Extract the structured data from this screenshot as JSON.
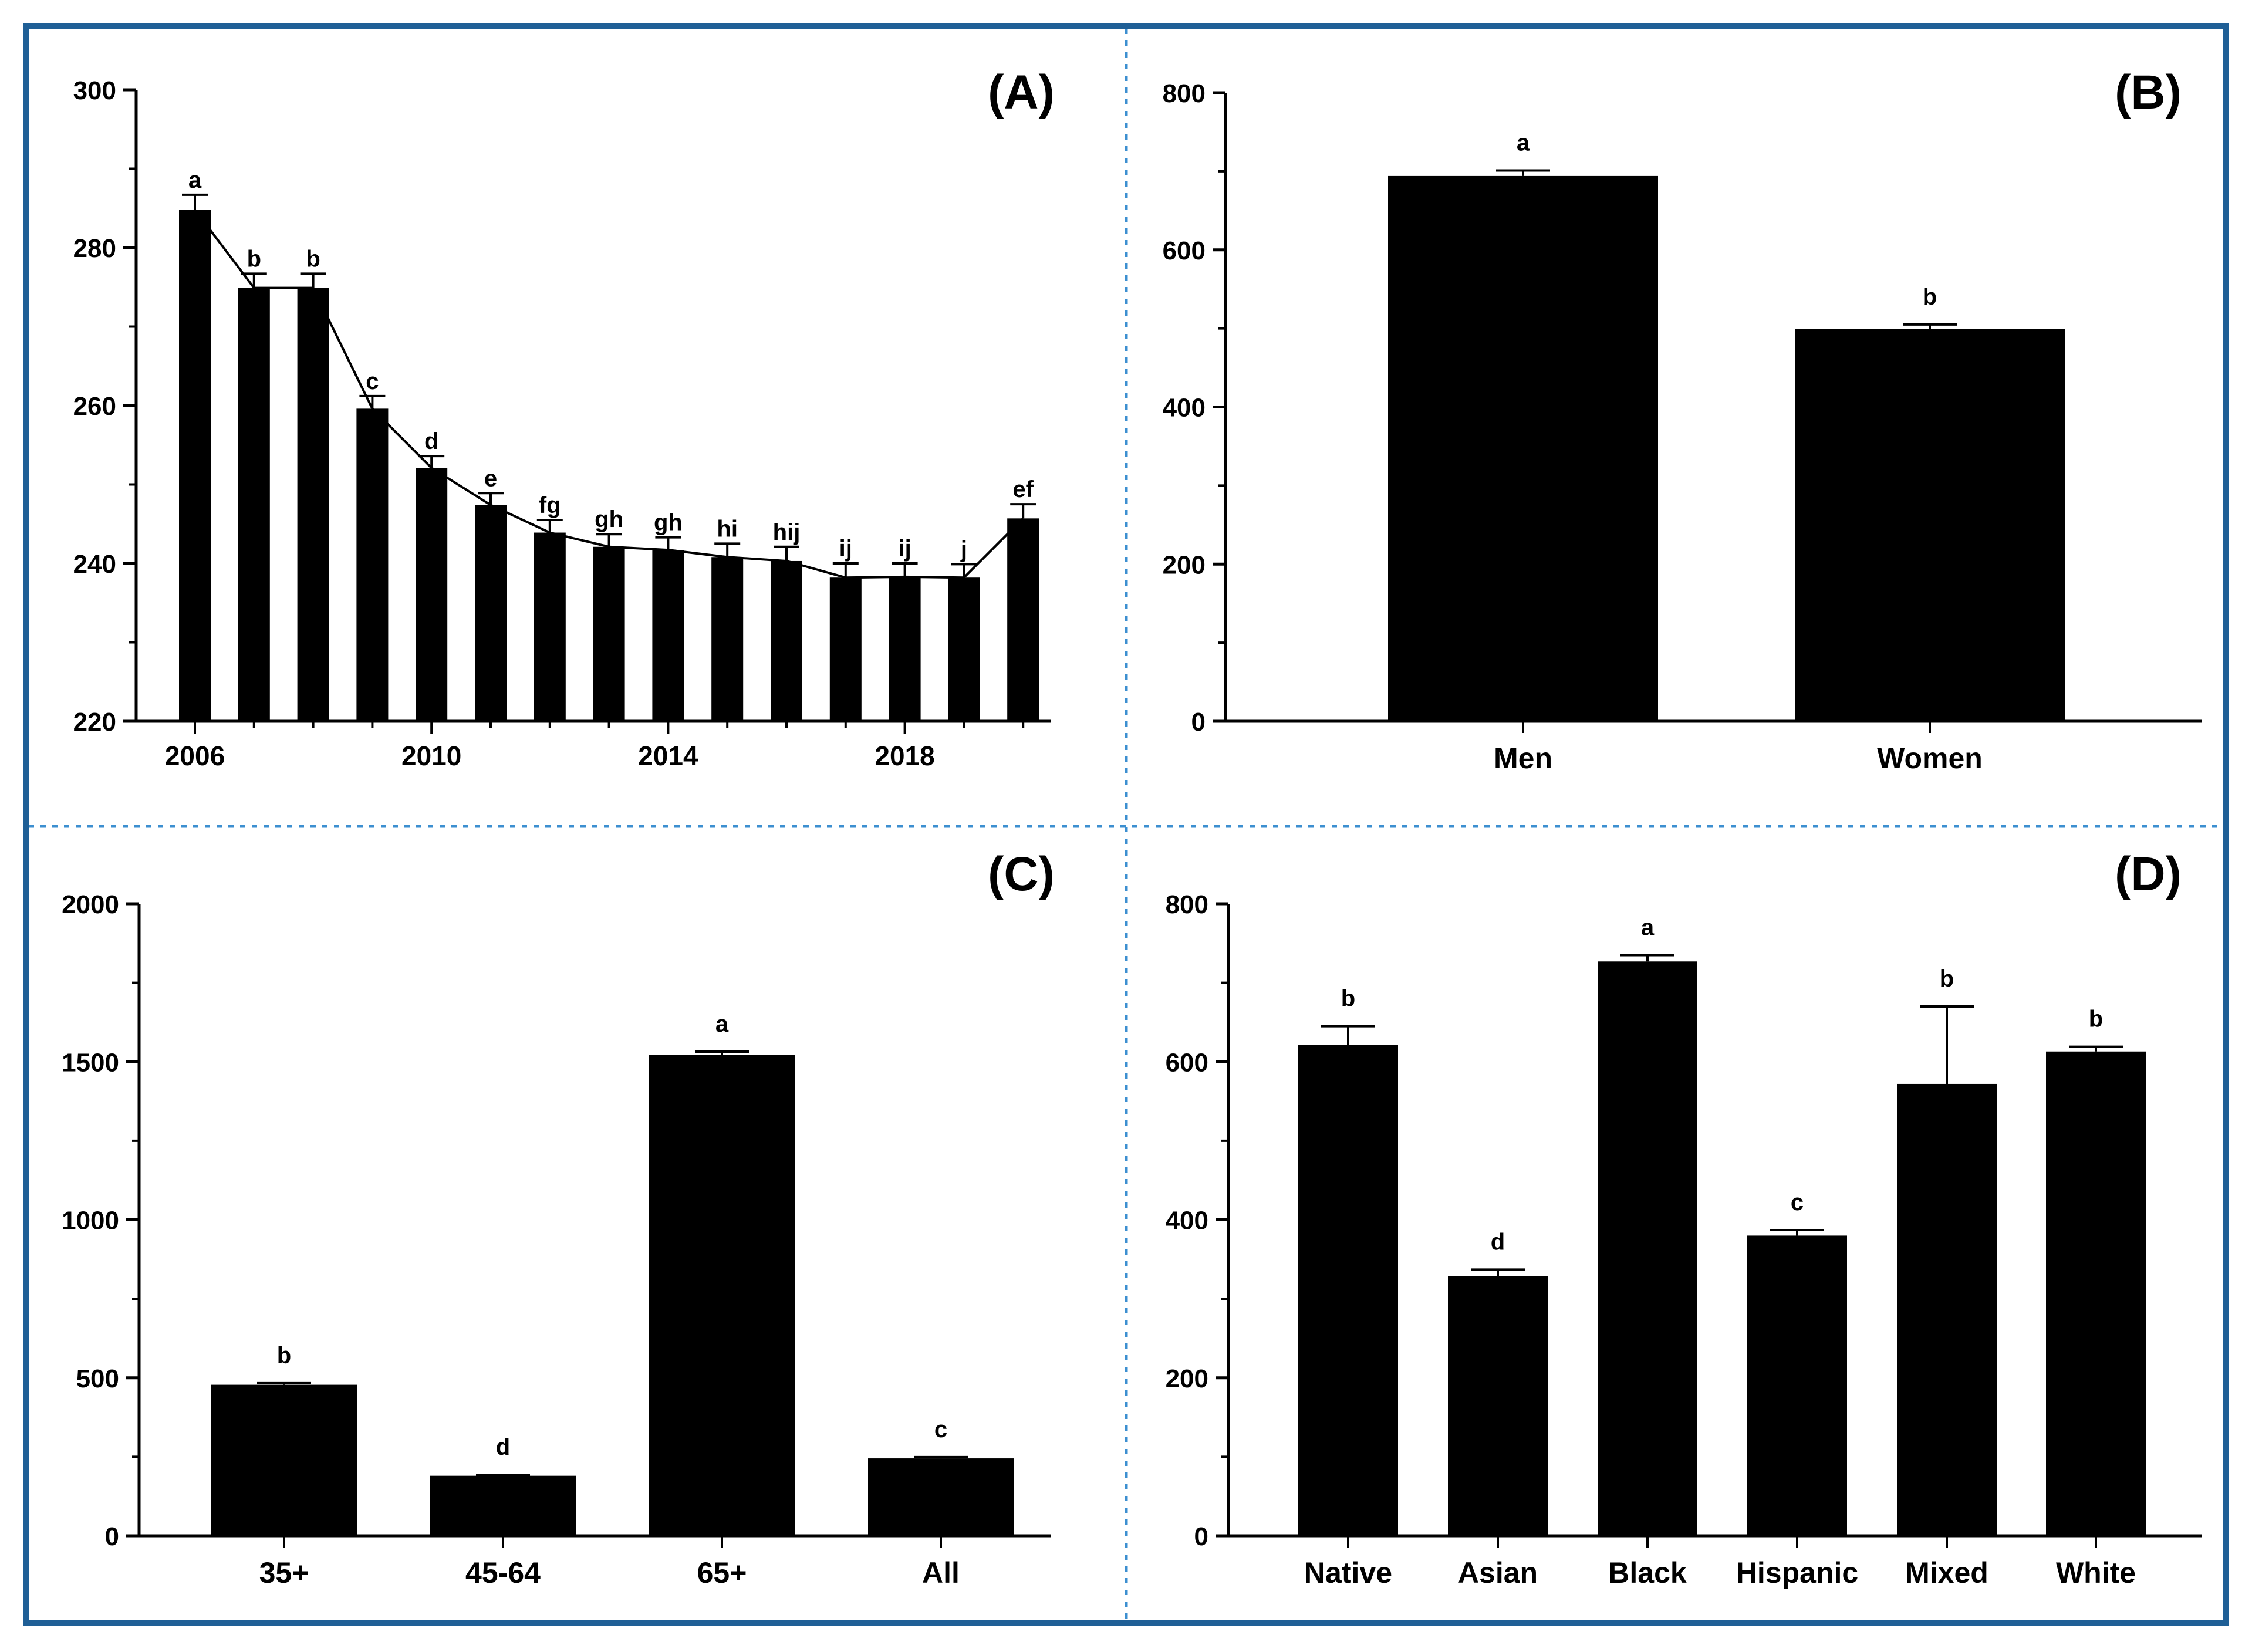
{
  "colors": {
    "frame": "#1f5f96",
    "divider": "#3c8fd0",
    "bar": "#000000",
    "text": "#000000"
  },
  "chart_data": [
    {
      "panel": "(A)",
      "type": "bar",
      "x": [
        2006,
        2007,
        2008,
        2009,
        2010,
        2011,
        2012,
        2013,
        2014,
        2015,
        2016,
        2017,
        2018,
        2019,
        2020
      ],
      "values": [
        284.8,
        274.9,
        274.9,
        259.6,
        252.1,
        247.4,
        243.9,
        242.1,
        241.7,
        240.8,
        240.3,
        238.2,
        238.3,
        238.2,
        245.7
      ],
      "errors": [
        1.9,
        1.8,
        1.8,
        1.6,
        1.5,
        1.5,
        1.6,
        1.6,
        1.6,
        1.7,
        1.8,
        1.8,
        1.7,
        1.7,
        1.8
      ],
      "letters": [
        "a",
        "b",
        "b",
        "c",
        "d",
        "e",
        "fg",
        "gh",
        "gh",
        "hi",
        "hij",
        "ij",
        "ij",
        "j",
        "ef"
      ],
      "trend_line": true,
      "xticks": [
        "2006",
        "2010",
        "2014",
        "2018"
      ],
      "yticks": [
        "220",
        "240",
        "260",
        "280",
        "300"
      ],
      "ylim": [
        220,
        300
      ]
    },
    {
      "panel": "(B)",
      "type": "bar",
      "categories": [
        "Men",
        "Women"
      ],
      "values": [
        694,
        499
      ],
      "errors": [
        7,
        6
      ],
      "letters": [
        "a",
        "b"
      ],
      "yticks": [
        "0",
        "200",
        "400",
        "600",
        "800"
      ],
      "ylim": [
        0,
        800
      ]
    },
    {
      "panel": "(C)",
      "type": "bar",
      "categories": [
        "35+",
        "45-64",
        "65+",
        "All"
      ],
      "values": [
        478,
        190,
        1522,
        245
      ],
      "errors": [
        5,
        3,
        10,
        4
      ],
      "letters": [
        "b",
        "d",
        "a",
        "c"
      ],
      "yticks": [
        "0",
        "500",
        "1000",
        "1500",
        "2000"
      ],
      "ylim": [
        0,
        2000
      ]
    },
    {
      "panel": "(D)",
      "type": "bar",
      "categories": [
        "Native",
        "Asian",
        "Black",
        "Hispanic",
        "Mixed",
        "White"
      ],
      "values": [
        621,
        329,
        727,
        380,
        572,
        613
      ],
      "errors": [
        24,
        8,
        8,
        7,
        98,
        6
      ],
      "letters": [
        "b",
        "d",
        "a",
        "c",
        "b",
        "b"
      ],
      "yticks": [
        "0",
        "200",
        "400",
        "600",
        "800"
      ],
      "ylim": [
        0,
        800
      ]
    }
  ]
}
